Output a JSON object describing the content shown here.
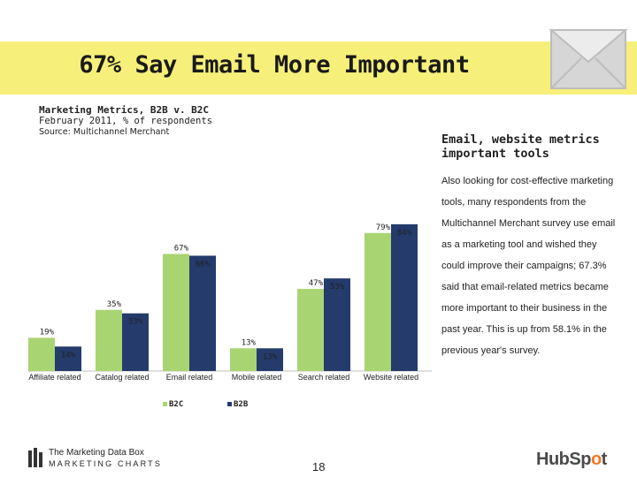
{
  "slide": {
    "title": "67% Say Email More Important",
    "subtitle": "Marketing Metrics, B2B v. B2C",
    "dates": "February 2011, % of respondents",
    "source": "Source: Multichannel Merchant",
    "page_number": "18"
  },
  "sidebar": {
    "heading": "Email, website metrics important tools",
    "body": "Also looking for cost-effective marketing tools, many respondents from the Multichannel Merchant survey use email as a marketing tool and wished they could improve their campaigns; 67.3% said that email-related metrics became more important to their business in the past year. This is up from 58.1% in the previous year's survey."
  },
  "branding": {
    "marketing_line1": "The Marketing Data Box",
    "marketing_line2": "MARKETING CHARTS",
    "hubspot_main": "HubSp",
    "hubspot_dot": "o",
    "hubspot_end": "t",
    "icons": [
      "envelope-icon",
      "bar-logo-icon"
    ]
  },
  "chart_data": {
    "type": "bar",
    "categories": [
      "Affiliate related",
      "Catalog related",
      "Email related",
      "Mobile related",
      "Search related",
      "Website related"
    ],
    "series": [
      {
        "name": "B2C",
        "color": "#a9d472",
        "values": [
          19,
          35,
          67,
          13,
          47,
          79
        ]
      },
      {
        "name": "B2B",
        "color": "#243b6b",
        "values": [
          14,
          33,
          66,
          13,
          53,
          84
        ]
      }
    ],
    "value_suffix": "%",
    "ylim": [
      0,
      90
    ],
    "legend_position": "bottom"
  }
}
